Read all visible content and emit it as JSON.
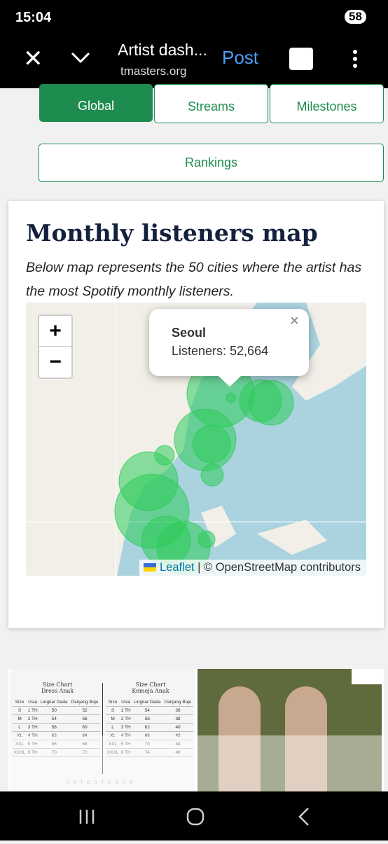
{
  "status_bar": {
    "time": "15:04",
    "battery": "58"
  },
  "toolbar": {
    "title": "Artist dash...",
    "url": "tmasters.org",
    "action": "Post"
  },
  "tabs": [
    "Global",
    "Streams",
    "Milestones",
    "Rankings"
  ],
  "card": {
    "title": "Monthly listeners map",
    "description": "Below map represents the 50 cities where the artist has the most Spotify monthly listeners."
  },
  "map": {
    "zoom_in": "+",
    "zoom_out": "−",
    "popup": {
      "city": "Seoul",
      "listeners": "Listeners: 52,664",
      "close": "×"
    },
    "attribution": {
      "link": "Leaflet",
      "text": "| © OpenStreetMap contributors"
    }
  },
  "ad": {
    "charts": [
      {
        "title": "Size Chart Dress Anak",
        "columns": [
          "Size",
          "Usia",
          "Lingkar Dada",
          "Panjang Baju"
        ],
        "rows": [
          [
            "S",
            "1 TH",
            "50",
            "52"
          ],
          [
            "M",
            "2 TH",
            "54",
            "56"
          ],
          [
            "L",
            "3 TH",
            "58",
            "60"
          ],
          [
            "XL",
            "4 TH",
            "62",
            "64"
          ],
          [
            "XXL",
            "5 TH",
            "66",
            "68"
          ],
          [
            "XXXL",
            "6 TH",
            "70",
            "72"
          ]
        ]
      },
      {
        "title": "Size Chart Kemeja Anak",
        "columns": [
          "Size",
          "Usia",
          "Lingkar Dada",
          "Panjang Baju"
        ],
        "rows": [
          [
            "S",
            "1 TH",
            "54",
            "36"
          ],
          [
            "M",
            "2 TH",
            "58",
            "38"
          ],
          [
            "L",
            "3 TH",
            "62",
            "40"
          ],
          [
            "XL",
            "4 TH",
            "66",
            "42"
          ],
          [
            "XXL",
            "5 TH",
            "70",
            "44"
          ],
          [
            "XXXL",
            "6 TH",
            "74",
            "46"
          ]
        ]
      }
    ],
    "watermark": "ARTOSTENUN"
  }
}
